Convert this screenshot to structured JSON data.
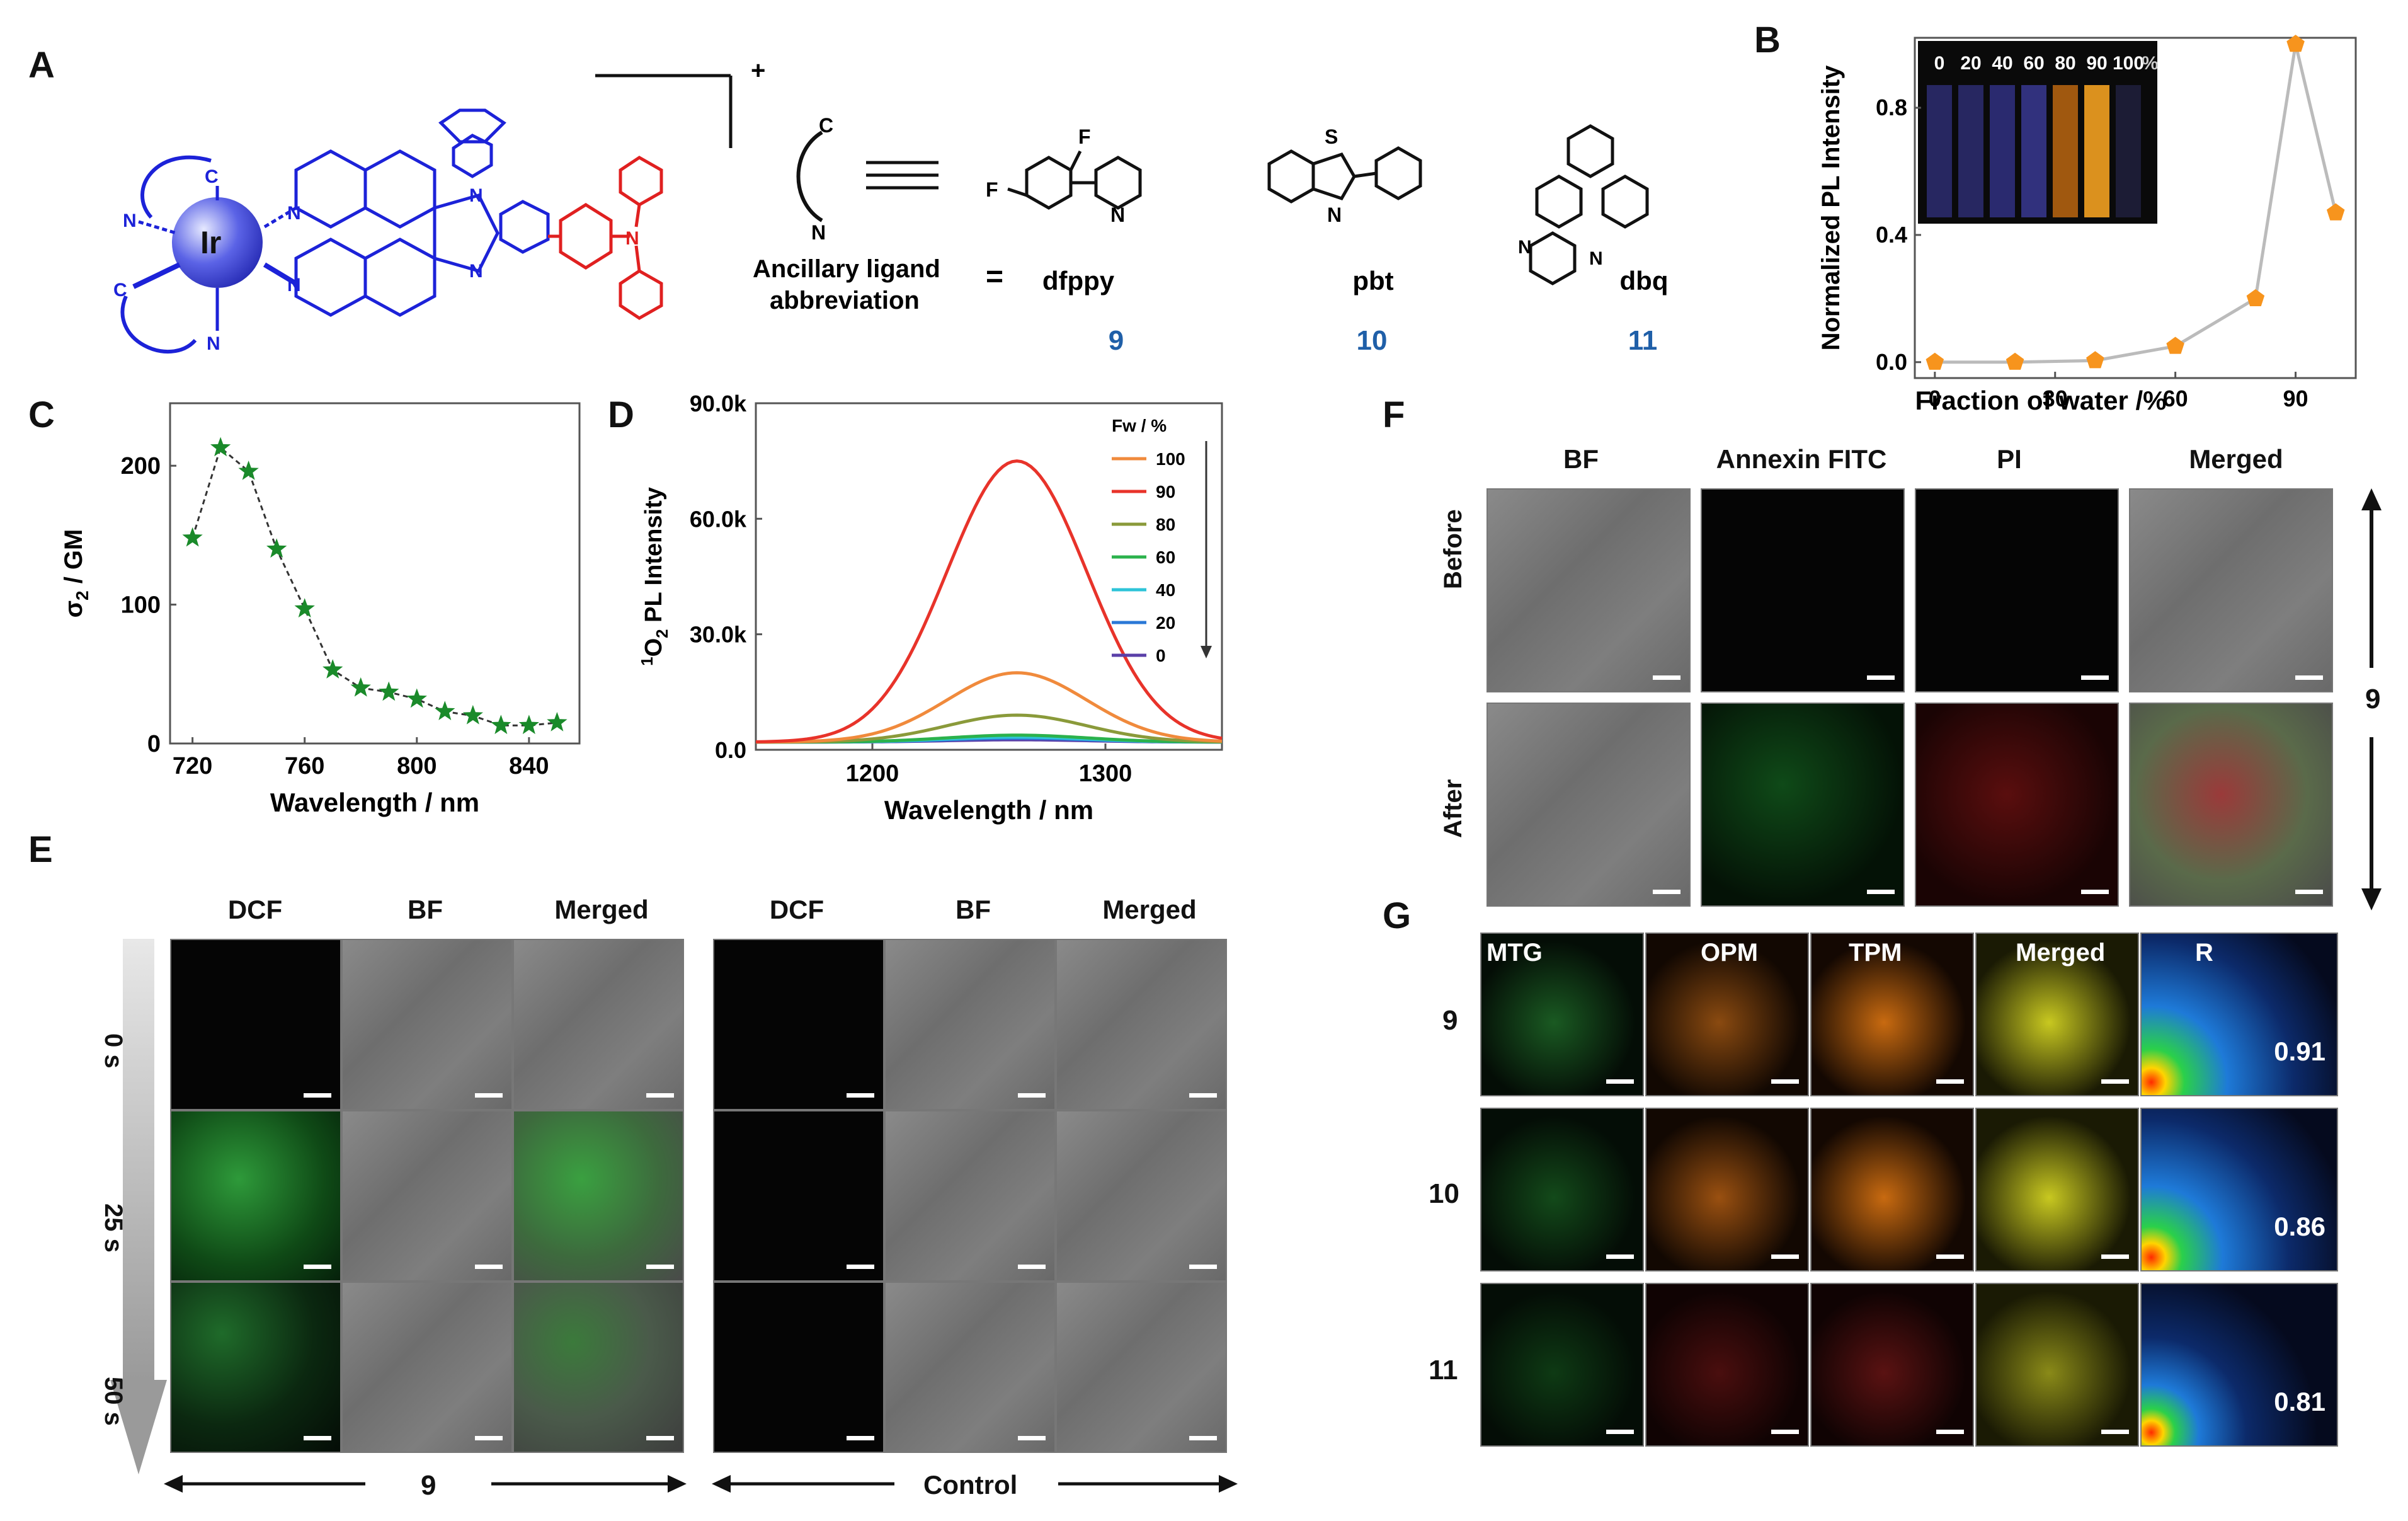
{
  "panel_labels": {
    "a": "A",
    "b": "B",
    "c": "C",
    "d": "D",
    "e": "E",
    "f": "F",
    "g": "G"
  },
  "panel_a": {
    "metal": "Ir",
    "charge": "+",
    "c_label": "C",
    "n_label": "N",
    "ancillary_line1": "Ancillary ligand",
    "ancillary_line2": "abbreviation",
    "equals": "=",
    "ligands": [
      {
        "abbr": "dfppy",
        "num": "9"
      },
      {
        "abbr": "pbt",
        "num": "10"
      },
      {
        "abbr": "dbq",
        "num": "11"
      }
    ],
    "atoms": {
      "F": "F",
      "S": "S",
      "N": "N"
    }
  },
  "panel_b": {
    "ylabel": "Normalized PL Intensity",
    "xlabel": "Fraction of water /%",
    "vial_labels": [
      "0",
      "20",
      "40",
      "60",
      "80",
      "90",
      "100"
    ],
    "vial_unit": "%",
    "xticks": [
      "0",
      "30",
      "60",
      "90"
    ],
    "yticks": [
      "0.0",
      "0.4",
      "0.8"
    ]
  },
  "panel_c": {
    "ylabel_main": "σ",
    "ylabel_sub": "2",
    "ylabel_rest": " / GM",
    "xlabel": "Wavelength / nm",
    "xticks": [
      "720",
      "760",
      "800",
      "840"
    ],
    "yticks": [
      "0",
      "100",
      "200"
    ]
  },
  "panel_d": {
    "ylabel_sup": "1",
    "ylabel_rest": "O",
    "ylabel_sub": "2",
    "ylabel_tail": " PL Intensity",
    "xlabel": "Wavelength / nm",
    "xticks": [
      "1200",
      "1300"
    ],
    "yticks": [
      "0.0",
      "30.0k",
      "60.0k",
      "90.0k"
    ],
    "legend_title": "Fw / %"
  },
  "panel_e": {
    "headers": [
      "DCF",
      "BF",
      "Merged",
      "DCF",
      "BF",
      "Merged"
    ],
    "times": [
      "0 s",
      "25 s",
      "50 s"
    ],
    "bottom_left": "9",
    "bottom_right": "Control"
  },
  "panel_f": {
    "headers": [
      "BF",
      "Annexin FITC",
      "PI",
      "Merged"
    ],
    "rows": [
      "Before",
      "After"
    ],
    "right_label": "9"
  },
  "panel_g": {
    "headers": [
      "MTG",
      "OPM",
      "TPM",
      "Merged",
      "R"
    ],
    "rows": [
      {
        "label": "9",
        "r": "0.91"
      },
      {
        "label": "10",
        "r": "0.86"
      },
      {
        "label": "11",
        "r": "0.81"
      }
    ]
  },
  "chart_data": [
    {
      "type": "scatter",
      "panel": "B",
      "x": [
        0,
        20,
        40,
        60,
        80,
        90,
        100
      ],
      "y": [
        0.0,
        0.0,
        0.005,
        0.05,
        0.2,
        1.0,
        0.47
      ],
      "xlabel": "Fraction of water /%",
      "ylabel": "Normalized PL Intensity",
      "xlim": [
        -5,
        105
      ],
      "ylim": [
        -0.05,
        1.02
      ],
      "color": "#f7941d",
      "line_color": "#bbbbbb"
    },
    {
      "type": "line",
      "panel": "C",
      "x": [
        720,
        730,
        740,
        750,
        760,
        770,
        780,
        790,
        800,
        810,
        820,
        830,
        840,
        850
      ],
      "y": [
        148,
        213,
        196,
        140,
        97,
        53,
        40,
        37,
        32,
        23,
        20,
        13,
        13,
        15
      ],
      "xlabel": "Wavelength / nm",
      "ylabel": "σ2 / GM",
      "xlim": [
        712,
        858
      ],
      "ylim": [
        0,
        245
      ],
      "color": "#1a8a2a"
    },
    {
      "type": "line",
      "panel": "D",
      "xlabel": "Wavelength / nm",
      "ylabel": "1O2 PL Intensity",
      "xlim": [
        1150,
        1350
      ],
      "ylim": [
        0,
        90000
      ],
      "center": 1262,
      "width": 30,
      "baseline": 2000,
      "series": [
        {
          "name": "100",
          "peak": 20000,
          "color": "#f08a3c"
        },
        {
          "name": "90",
          "peak": 75000,
          "color": "#e8332a"
        },
        {
          "name": "80",
          "peak": 9000,
          "color": "#8a9a3a"
        },
        {
          "name": "60",
          "peak": 3800,
          "color": "#2bb24c"
        },
        {
          "name": "40",
          "peak": 3300,
          "color": "#2ec4d8"
        },
        {
          "name": "20",
          "peak": 3000,
          "color": "#2a78d6"
        },
        {
          "name": "0",
          "peak": 2600,
          "color": "#5a3fa8"
        }
      ]
    }
  ]
}
